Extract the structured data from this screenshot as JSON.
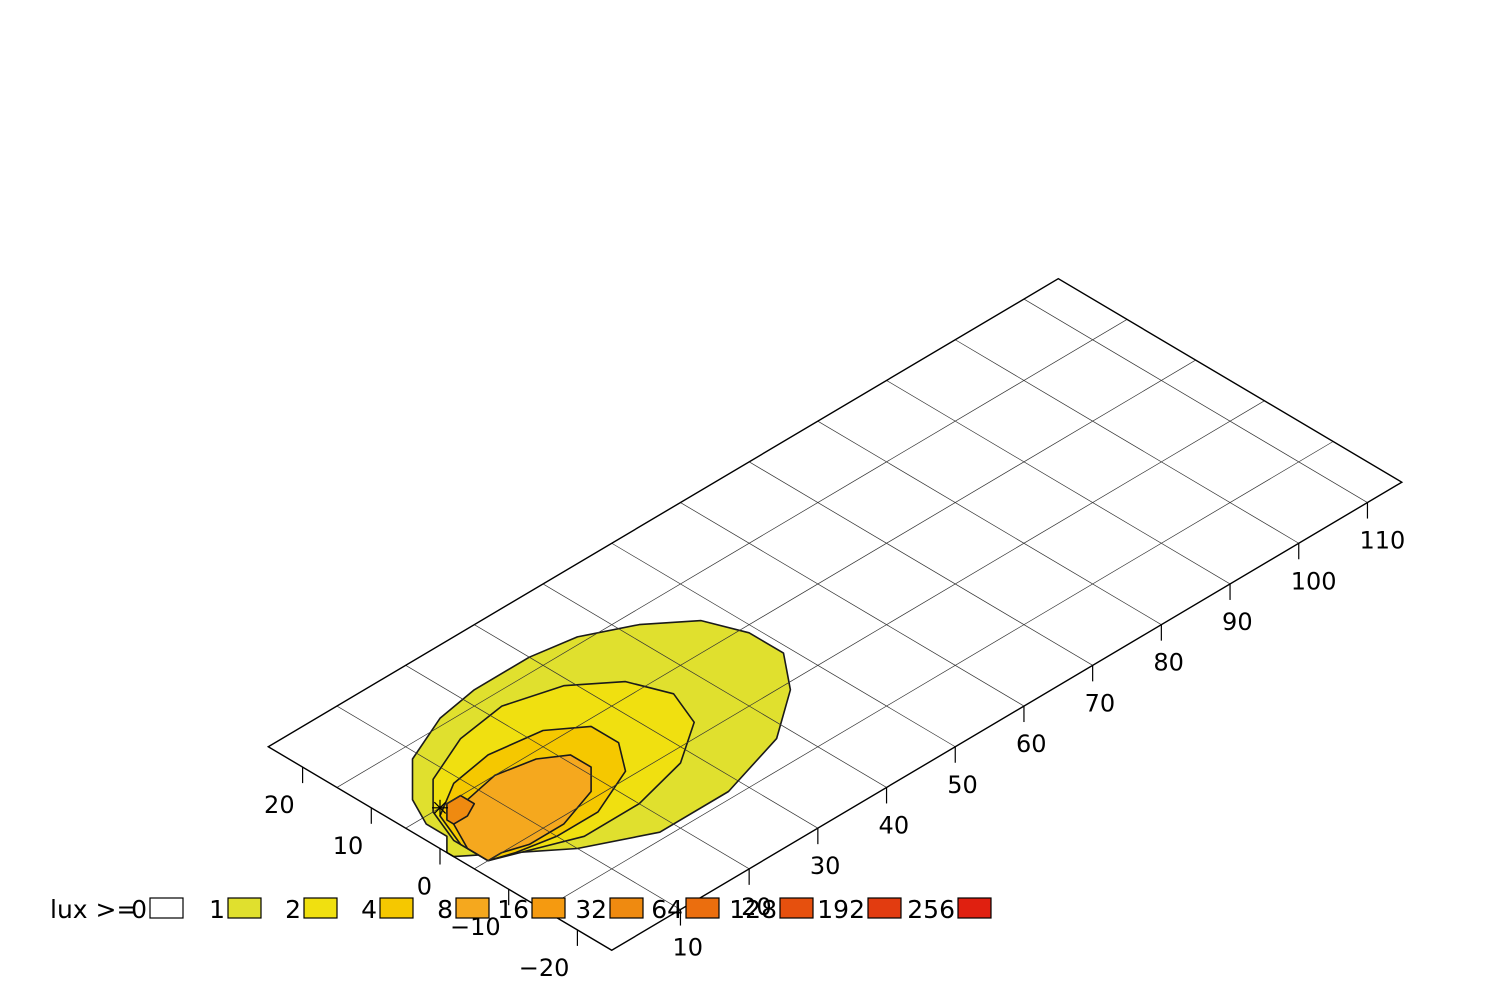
{
  "chart_data": {
    "type": "heatmap",
    "title": "",
    "xlabel": "",
    "ylabel": "",
    "plane_x_range": [
      0,
      115
    ],
    "plane_y_range": [
      -25,
      25
    ],
    "x_axis_ticks": [
      10,
      20,
      30,
      40,
      50,
      60,
      70,
      80,
      90,
      100,
      110
    ],
    "y_axis_ticks": [
      20,
      10,
      0,
      -10,
      -20
    ],
    "x_tick_labels": [
      "10",
      "20",
      "30",
      "40",
      "50",
      "60",
      "70",
      "80",
      "90",
      "100",
      "110"
    ],
    "y_tick_labels": [
      "20",
      "10",
      "0",
      "−10",
      "−20"
    ],
    "grid_x": [
      0,
      10,
      20,
      30,
      40,
      50,
      60,
      70,
      80,
      90,
      100,
      110,
      115
    ],
    "grid_y": [
      -25,
      -15,
      -5,
      5,
      15,
      25
    ],
    "light_source": {
      "x": 5,
      "y": 5
    },
    "contours": [
      {
        "level": 1,
        "color": "#e0e02e",
        "points": [
          [
            0,
            -2
          ],
          [
            0,
            -1
          ],
          [
            1,
            0
          ],
          [
            2,
            1
          ],
          [
            2,
            4
          ],
          [
            4,
            8
          ],
          [
            9,
            13
          ],
          [
            16,
            16
          ],
          [
            22,
            17
          ],
          [
            30,
            17
          ],
          [
            36,
            16
          ],
          [
            42,
            13
          ],
          [
            47,
            9
          ],
          [
            49,
            4
          ],
          [
            49,
            -1
          ],
          [
            45,
            -6
          ],
          [
            38,
            -11
          ],
          [
            28,
            -14
          ],
          [
            18,
            -14
          ],
          [
            10,
            -10
          ],
          [
            5,
            -6
          ]
        ]
      },
      {
        "level": 2,
        "color": "#f0e010",
        "points": [
          [
            2,
            -5
          ],
          [
            2,
            0
          ],
          [
            4,
            5
          ],
          [
            8,
            9
          ],
          [
            15,
            12
          ],
          [
            22,
            13
          ],
          [
            29,
            11
          ],
          [
            34,
            7
          ],
          [
            36,
            2
          ],
          [
            34,
            -3
          ],
          [
            28,
            -7
          ],
          [
            20,
            -9
          ],
          [
            12,
            -9
          ],
          [
            7,
            -7
          ]
        ]
      },
      {
        "level": 4,
        "color": "#f5c800",
        "points": [
          [
            2,
            -5
          ],
          [
            2,
            -1
          ],
          [
            4,
            4
          ],
          [
            9,
            7
          ],
          [
            15,
            8
          ],
          [
            22,
            7
          ],
          [
            26,
            4
          ],
          [
            26,
            0
          ],
          [
            23,
            -4
          ],
          [
            16,
            -7
          ],
          [
            10,
            -7
          ],
          [
            5,
            -6
          ]
        ]
      },
      {
        "level": 8,
        "color": "#f5a81e",
        "points": [
          [
            2,
            -5
          ],
          [
            2,
            -2
          ],
          [
            4,
            2
          ],
          [
            8,
            4
          ],
          [
            13,
            5
          ],
          [
            18,
            4
          ],
          [
            21,
            2
          ],
          [
            21,
            -1
          ],
          [
            18,
            -4
          ],
          [
            12,
            -6
          ],
          [
            7,
            -6
          ],
          [
            4,
            -5
          ]
        ]
      },
      {
        "level": 32,
        "color": "#ef8a10",
        "points": [
          [
            4,
            3
          ],
          [
            6,
            5
          ],
          [
            8,
            5
          ],
          [
            8,
            3
          ],
          [
            6,
            2
          ],
          [
            4,
            2
          ]
        ]
      }
    ],
    "legend": {
      "prefix": "lux >=",
      "placement": "bottom",
      "items": [
        {
          "label": "0",
          "color": "#ffffff"
        },
        {
          "label": "1",
          "color": "#e0e02e"
        },
        {
          "label": "2",
          "color": "#f0e010"
        },
        {
          "label": "4",
          "color": "#f5c800"
        },
        {
          "label": "8",
          "color": "#f5a81e"
        },
        {
          "label": "16",
          "color": "#f59a10"
        },
        {
          "label": "32",
          "color": "#ef8a10"
        },
        {
          "label": "64",
          "color": "#eb6e0e"
        },
        {
          "label": "128",
          "color": "#e6500e"
        },
        {
          "label": "192",
          "color": "#e23c10"
        },
        {
          "label": "256",
          "color": "#e02010"
        }
      ]
    }
  }
}
